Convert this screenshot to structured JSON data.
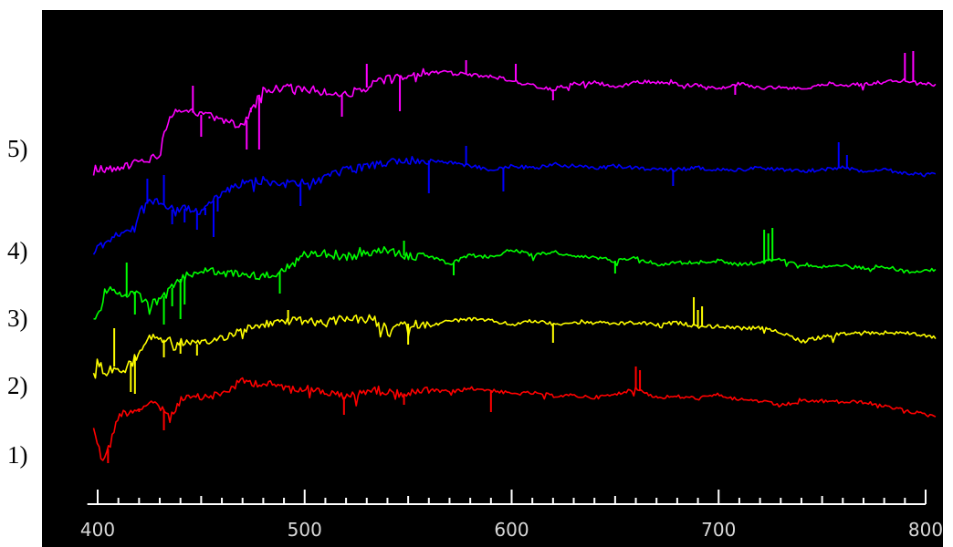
{
  "chart_data": {
    "type": "line",
    "title": "",
    "xlabel": "",
    "ylabel": "",
    "xlim": [
      395,
      805
    ],
    "x_ticks": [
      400,
      500,
      600,
      700,
      800
    ],
    "x_tick_labels": [
      "400",
      "500",
      "600",
      "700",
      "800"
    ],
    "x_minor_step": 10,
    "y_axis": "none (spectra vertically offset)",
    "grid": false,
    "background": "#000000",
    "series": [
      {
        "name": "1)",
        "color": "#ff0000",
        "points": [
          [
            398,
            468
          ],
          [
            402,
            505
          ],
          [
            406,
            488
          ],
          [
            410,
            455
          ],
          [
            420,
            448
          ],
          [
            430,
            442
          ],
          [
            435,
            460
          ],
          [
            440,
            438
          ],
          [
            450,
            436
          ],
          [
            460,
            432
          ],
          [
            470,
            418
          ],
          [
            480,
            421
          ],
          [
            490,
            424
          ],
          [
            500,
            426
          ],
          [
            510,
            430
          ],
          [
            520,
            436
          ],
          [
            530,
            428
          ],
          [
            540,
            430
          ],
          [
            550,
            432
          ],
          [
            560,
            428
          ],
          [
            570,
            430
          ],
          [
            580,
            426
          ],
          [
            590,
            428
          ],
          [
            600,
            432
          ],
          [
            610,
            431
          ],
          [
            620,
            434
          ],
          [
            630,
            434
          ],
          [
            640,
            436
          ],
          [
            650,
            433
          ],
          [
            660,
            426
          ],
          [
            670,
            436
          ],
          [
            680,
            435
          ],
          [
            690,
            437
          ],
          [
            700,
            433
          ],
          [
            710,
            438
          ],
          [
            720,
            440
          ],
          [
            730,
            445
          ],
          [
            740,
            440
          ],
          [
            750,
            440
          ],
          [
            760,
            441
          ],
          [
            770,
            441
          ],
          [
            780,
            446
          ],
          [
            790,
            450
          ],
          [
            800,
            455
          ],
          [
            805,
            456
          ]
        ],
        "spikes": [
          [
            405,
            508
          ],
          [
            420,
            452
          ],
          [
            432,
            472
          ],
          [
            519,
            455
          ],
          [
            548,
            444
          ],
          [
            590,
            452
          ],
          [
            660,
            402
          ],
          [
            662,
            406
          ]
        ]
      },
      {
        "name": "2)",
        "color": "#ffff00",
        "points": [
          [
            398,
            412
          ],
          [
            400,
            395
          ],
          [
            404,
            412
          ],
          [
            408,
            402
          ],
          [
            412,
            408
          ],
          [
            416,
            398
          ],
          [
            420,
            388
          ],
          [
            425,
            368
          ],
          [
            430,
            372
          ],
          [
            440,
            375
          ],
          [
            450,
            378
          ],
          [
            460,
            370
          ],
          [
            470,
            362
          ],
          [
            480,
            356
          ],
          [
            490,
            352
          ],
          [
            500,
            352
          ],
          [
            510,
            355
          ],
          [
            520,
            348
          ],
          [
            530,
            352
          ],
          [
            540,
            360
          ],
          [
            550,
            355
          ],
          [
            560,
            357
          ],
          [
            570,
            352
          ],
          [
            580,
            350
          ],
          [
            590,
            352
          ],
          [
            600,
            356
          ],
          [
            610,
            352
          ],
          [
            620,
            355
          ],
          [
            630,
            354
          ],
          [
            640,
            354
          ],
          [
            650,
            355
          ],
          [
            660,
            354
          ],
          [
            670,
            356
          ],
          [
            680,
            354
          ],
          [
            690,
            358
          ],
          [
            700,
            358
          ],
          [
            710,
            360
          ],
          [
            720,
            360
          ],
          [
            730,
            364
          ],
          [
            740,
            374
          ],
          [
            750,
            370
          ],
          [
            760,
            366
          ],
          [
            770,
            365
          ],
          [
            780,
            365
          ],
          [
            790,
            365
          ],
          [
            800,
            368
          ],
          [
            805,
            370
          ]
        ],
        "spikes": [
          [
            408,
            360
          ],
          [
            416,
            430
          ],
          [
            418,
            432
          ],
          [
            432,
            392
          ],
          [
            440,
            388
          ],
          [
            448,
            390
          ],
          [
            492,
            340
          ],
          [
            550,
            378
          ],
          [
            620,
            376
          ],
          [
            688,
            326
          ],
          [
            690,
            340
          ],
          [
            692,
            336
          ]
        ]
      },
      {
        "name": "3)",
        "color": "#00ff00",
        "points": [
          [
            398,
            354
          ],
          [
            400,
            348
          ],
          [
            404,
            318
          ],
          [
            408,
            320
          ],
          [
            412,
            326
          ],
          [
            418,
            320
          ],
          [
            425,
            334
          ],
          [
            430,
            330
          ],
          [
            440,
            306
          ],
          [
            450,
            296
          ],
          [
            460,
            300
          ],
          [
            470,
            300
          ],
          [
            480,
            304
          ],
          [
            490,
            296
          ],
          [
            500,
            280
          ],
          [
            510,
            278
          ],
          [
            520,
            282
          ],
          [
            530,
            278
          ],
          [
            540,
            274
          ],
          [
            550,
            282
          ],
          [
            560,
            280
          ],
          [
            570,
            290
          ],
          [
            580,
            280
          ],
          [
            590,
            282
          ],
          [
            600,
            274
          ],
          [
            610,
            280
          ],
          [
            620,
            276
          ],
          [
            630,
            282
          ],
          [
            640,
            282
          ],
          [
            650,
            286
          ],
          [
            660,
            282
          ],
          [
            670,
            290
          ],
          [
            680,
            288
          ],
          [
            690,
            288
          ],
          [
            700,
            286
          ],
          [
            710,
            290
          ],
          [
            720,
            288
          ],
          [
            730,
            284
          ],
          [
            740,
            290
          ],
          [
            750,
            292
          ],
          [
            760,
            292
          ],
          [
            770,
            294
          ],
          [
            780,
            292
          ],
          [
            790,
            298
          ],
          [
            800,
            296
          ],
          [
            805,
            296
          ]
        ],
        "spikes": [
          [
            414,
            288
          ],
          [
            418,
            345
          ],
          [
            432,
            356
          ],
          [
            436,
            336
          ],
          [
            440,
            350
          ],
          [
            442,
            334
          ],
          [
            488,
            322
          ],
          [
            548,
            264
          ],
          [
            572,
            302
          ],
          [
            650,
            300
          ],
          [
            722,
            252
          ],
          [
            724,
            256
          ],
          [
            726,
            250
          ]
        ]
      },
      {
        "name": "4)",
        "color": "#0000ff",
        "points": [
          [
            398,
            278
          ],
          [
            404,
            264
          ],
          [
            410,
            256
          ],
          [
            418,
            250
          ],
          [
            422,
            224
          ],
          [
            430,
            222
          ],
          [
            436,
            230
          ],
          [
            440,
            228
          ],
          [
            450,
            232
          ],
          [
            460,
            212
          ],
          [
            470,
            200
          ],
          [
            480,
            198
          ],
          [
            490,
            202
          ],
          [
            500,
            200
          ],
          [
            510,
            196
          ],
          [
            520,
            186
          ],
          [
            530,
            182
          ],
          [
            540,
            178
          ],
          [
            550,
            176
          ],
          [
            560,
            176
          ],
          [
            570,
            178
          ],
          [
            580,
            182
          ],
          [
            590,
            186
          ],
          [
            600,
            182
          ],
          [
            610,
            184
          ],
          [
            620,
            180
          ],
          [
            630,
            182
          ],
          [
            640,
            184
          ],
          [
            650,
            182
          ],
          [
            660,
            184
          ],
          [
            670,
            186
          ],
          [
            680,
            186
          ],
          [
            690,
            184
          ],
          [
            700,
            186
          ],
          [
            710,
            186
          ],
          [
            720,
            184
          ],
          [
            730,
            186
          ],
          [
            740,
            188
          ],
          [
            750,
            186
          ],
          [
            760,
            184
          ],
          [
            770,
            188
          ],
          [
            780,
            186
          ],
          [
            790,
            190
          ],
          [
            800,
            192
          ],
          [
            805,
            191
          ]
        ],
        "spikes": [
          [
            424,
            196
          ],
          [
            432,
            192
          ],
          [
            436,
            246
          ],
          [
            442,
            244
          ],
          [
            448,
            252
          ],
          [
            452,
            236
          ],
          [
            456,
            260
          ],
          [
            458,
            232
          ],
          [
            498,
            226
          ],
          [
            560,
            212
          ],
          [
            578,
            160
          ],
          [
            596,
            210
          ],
          [
            678,
            204
          ],
          [
            758,
            156
          ],
          [
            762,
            170
          ],
          [
            776,
            186
          ]
        ]
      },
      {
        "name": "5)",
        "color": "#ff00ff",
        "points": [
          [
            398,
            184
          ],
          [
            404,
            185
          ],
          [
            412,
            183
          ],
          [
            420,
            178
          ],
          [
            430,
            172
          ],
          [
            432,
            144
          ],
          [
            436,
            126
          ],
          [
            440,
            120
          ],
          [
            450,
            126
          ],
          [
            460,
            130
          ],
          [
            470,
            140
          ],
          [
            480,
            98
          ],
          [
            490,
            96
          ],
          [
            500,
            98
          ],
          [
            510,
            102
          ],
          [
            520,
            104
          ],
          [
            530,
            96
          ],
          [
            540,
            86
          ],
          [
            550,
            82
          ],
          [
            560,
            78
          ],
          [
            570,
            80
          ],
          [
            580,
            82
          ],
          [
            590,
            84
          ],
          [
            600,
            88
          ],
          [
            610,
            94
          ],
          [
            620,
            98
          ],
          [
            630,
            92
          ],
          [
            640,
            90
          ],
          [
            650,
            96
          ],
          [
            660,
            90
          ],
          [
            670,
            90
          ],
          [
            680,
            92
          ],
          [
            690,
            94
          ],
          [
            700,
            98
          ],
          [
            710,
            92
          ],
          [
            720,
            96
          ],
          [
            730,
            96
          ],
          [
            740,
            98
          ],
          [
            750,
            92
          ],
          [
            760,
            94
          ],
          [
            770,
            92
          ],
          [
            780,
            90
          ],
          [
            790,
            88
          ],
          [
            800,
            92
          ],
          [
            805,
            93
          ]
        ],
        "spikes": [
          [
            446,
            94
          ],
          [
            450,
            150
          ],
          [
            454,
            130
          ],
          [
            472,
            164
          ],
          [
            474,
            118
          ],
          [
            478,
            164
          ],
          [
            518,
            128
          ],
          [
            530,
            70
          ],
          [
            546,
            122
          ],
          [
            578,
            66
          ],
          [
            602,
            70
          ],
          [
            620,
            110
          ],
          [
            708,
            104
          ],
          [
            790,
            58
          ],
          [
            794,
            56
          ]
        ]
      }
    ]
  }
}
